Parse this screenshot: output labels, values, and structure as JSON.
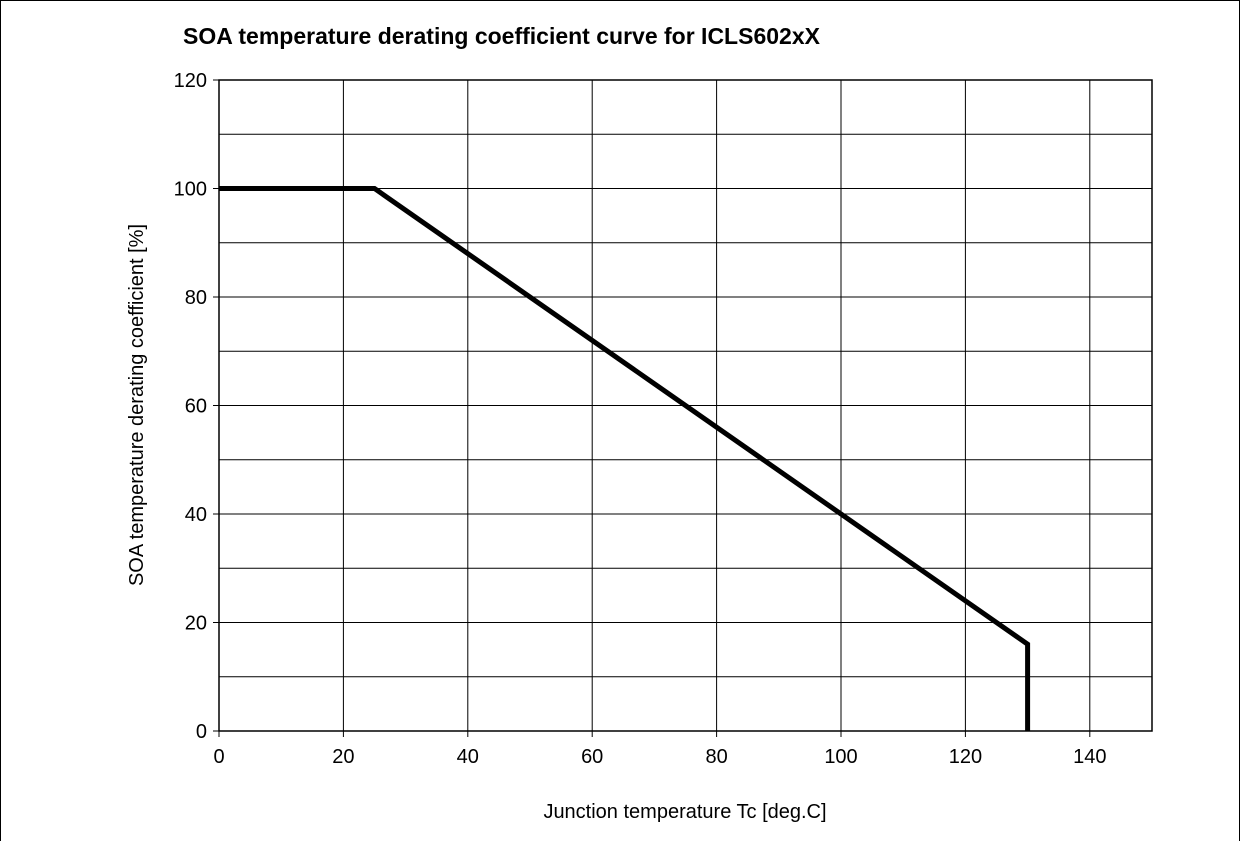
{
  "chart_data": {
    "type": "line",
    "title": "SOA temperature derating coefficient curve for ICLS602xX",
    "xlabel": "Junction temperature Tc [deg.C]",
    "ylabel": "SOA temperature derating coefficient [%]",
    "xlim": [
      0,
      150
    ],
    "ylim": [
      0,
      120
    ],
    "xticks": [
      0,
      20,
      40,
      60,
      80,
      100,
      120,
      140
    ],
    "yticks": [
      0,
      20,
      40,
      60,
      80,
      100,
      120
    ],
    "x_tick_labels": [
      "0",
      "20",
      "40",
      "60",
      "80",
      "100",
      "120",
      "140"
    ],
    "y_tick_labels": [
      "0",
      "20",
      "40",
      "60",
      "80",
      "100",
      "120"
    ],
    "grid": true,
    "series": [
      {
        "x": [
          0,
          25,
          130,
          130
        ],
        "y": [
          100,
          100,
          16,
          0
        ]
      }
    ]
  }
}
